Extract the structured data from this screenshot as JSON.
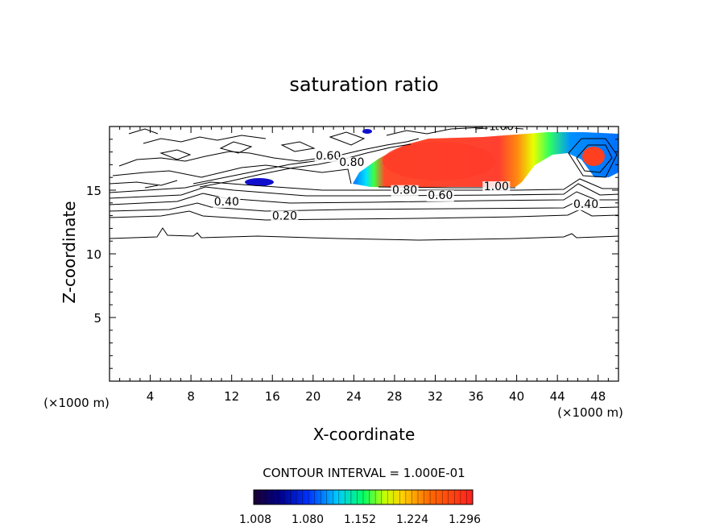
{
  "chart_data": {
    "type": "heatmap",
    "title": "saturation ratio",
    "xlabel": "X-coordinate",
    "ylabel": "Z-coordinate",
    "x_unit_left": "(×1000 m)",
    "x_unit_right": "(×1000 m)",
    "xlim": [
      0,
      50
    ],
    "ylim": [
      0,
      20
    ],
    "x_ticks": [
      4,
      8,
      12,
      16,
      20,
      24,
      28,
      32,
      36,
      40,
      44,
      48
    ],
    "y_ticks": [
      5,
      10,
      15
    ],
    "contour_interval_text": "CONTOUR INTERVAL = 1.000E-01",
    "contour_labels": [
      {
        "text": "0.20",
        "x": 17.2,
        "z": 12.7
      },
      {
        "text": "0.40",
        "x": 11.5,
        "z": 13.8
      },
      {
        "text": "0.60",
        "x": 21.5,
        "z": 17.4
      },
      {
        "text": "0.80",
        "x": 23.8,
        "z": 16.9
      },
      {
        "text": "0.80",
        "x": 29.0,
        "z": 14.7
      },
      {
        "text": "0.60",
        "x": 32.5,
        "z": 14.3
      },
      {
        "text": "1.00",
        "x": 38.0,
        "z": 15.0
      },
      {
        "text": "1.00",
        "x": 38.5,
        "z": 19.7
      },
      {
        "text": "0.40",
        "x": 46.8,
        "z": 13.6
      }
    ],
    "colorbar": {
      "min": 1.008,
      "max": 1.296,
      "tick_labels": [
        "1.008",
        "1.080",
        "1.152",
        "1.224",
        "1.296"
      ],
      "colors": [
        "#1a0030",
        "#00008b",
        "#0033ff",
        "#00c8ff",
        "#00ff66",
        "#c8ff00",
        "#ffd000",
        "#ff6a00",
        "#ff2a1a",
        "#ff3030"
      ]
    }
  }
}
